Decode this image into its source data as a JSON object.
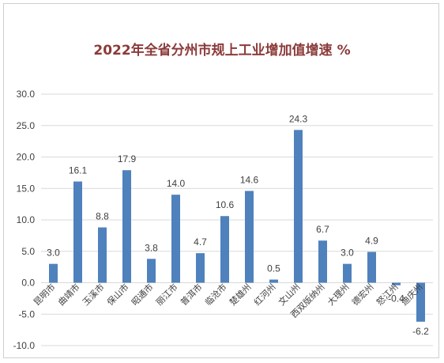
{
  "chart_data": {
    "type": "bar",
    "title": "2022年全省分州市规上工业增加值增速 %",
    "categories": [
      "昆明市",
      "曲靖市",
      "玉溪市",
      "保山市",
      "昭通市",
      "丽江市",
      "普洱市",
      "临沧市",
      "楚雄州",
      "红河州",
      "文山州",
      "西双版纳州",
      "大理州",
      "德宏州",
      "怒江州",
      "迪庆州"
    ],
    "values": [
      3.0,
      16.1,
      8.8,
      17.9,
      3.8,
      14.0,
      4.7,
      10.6,
      14.6,
      0.5,
      24.3,
      6.7,
      3.0,
      4.9,
      -0.4,
      -6.2
    ],
    "value_labels": [
      "3.0",
      "16.1",
      "8.8",
      "17.9",
      "3.8",
      "14.0",
      "4.7",
      "10.6",
      "14.6",
      "0.5",
      "24.3",
      "6.7",
      "3.0",
      "4.9",
      "-0.4",
      "-6.2"
    ],
    "yticks": [
      "30.0",
      "25.0",
      "20.0",
      "15.0",
      "10.0",
      "5.0",
      "0.0",
      "-5.0",
      "-10.0"
    ],
    "ylim": [
      -10,
      30
    ],
    "grid": true,
    "legend": "none",
    "bar_color": "#4f81bd",
    "xlabel": "",
    "ylabel": ""
  }
}
